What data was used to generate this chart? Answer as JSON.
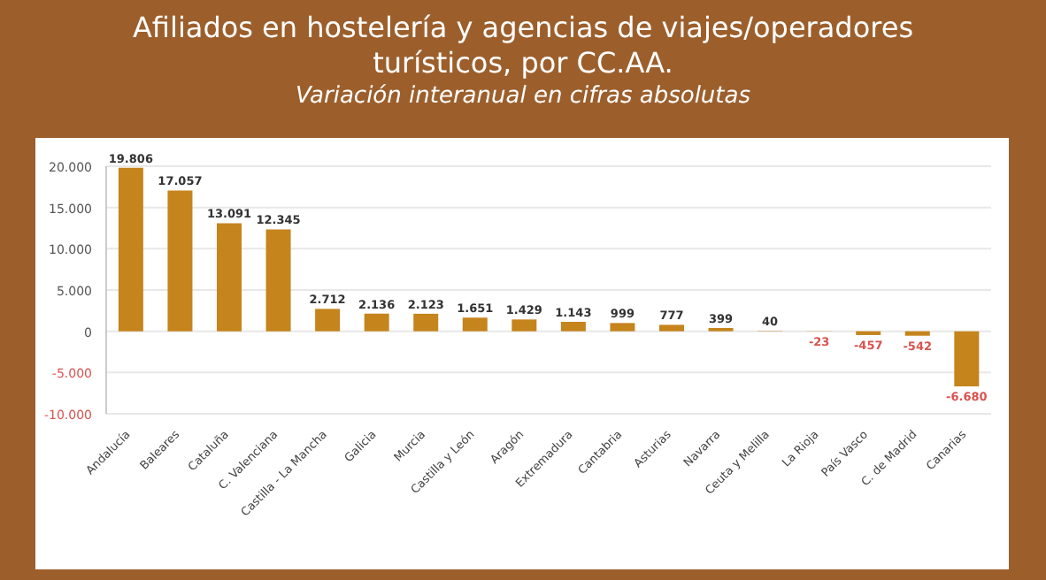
{
  "chart_data": {
    "type": "bar",
    "title": "Afiliados en hostelería y agencias de viajes/operadores turísticos, por CC.AA.",
    "subtitle": "Variación interanual en cifras absolutas",
    "categories": [
      "Andalucía",
      "Baleares",
      "Cataluña",
      "C. Valenciana",
      "Castilla - La Mancha",
      "Galicia",
      "Murcia",
      "Castilla y León",
      "Aragón",
      "Extremadura",
      "Cantabria",
      "Asturias",
      "Navarra",
      "Ceuta y Melilla",
      "La Rioja",
      "País Vasco",
      "C. de Madrid",
      "Canarias"
    ],
    "values": [
      19806,
      17057,
      13091,
      12345,
      2712,
      2136,
      2123,
      1651,
      1429,
      1143,
      999,
      777,
      399,
      40,
      -23,
      -457,
      -542,
      -6680
    ],
    "value_labels": [
      "19.806",
      "17.057",
      "13.091",
      "12.345",
      "2.712",
      "2.136",
      "2.123",
      "1.651",
      "1.429",
      "1.143",
      "999",
      "777",
      "399",
      "40",
      "-23",
      "-457",
      "-542",
      "-6.680"
    ],
    "color": "#c5841c",
    "ylim": [
      -10000,
      20000
    ],
    "yticks": [
      {
        "value": -10000,
        "label": "-10.000"
      },
      {
        "value": -5000,
        "label": "-5.000"
      },
      {
        "value": 0,
        "label": "0"
      },
      {
        "value": 5000,
        "label": "5.000"
      },
      {
        "value": 10000,
        "label": "10.000"
      },
      {
        "value": 15000,
        "label": "15.000"
      },
      {
        "value": 20000,
        "label": "20.000"
      }
    ],
    "grid": "y"
  }
}
